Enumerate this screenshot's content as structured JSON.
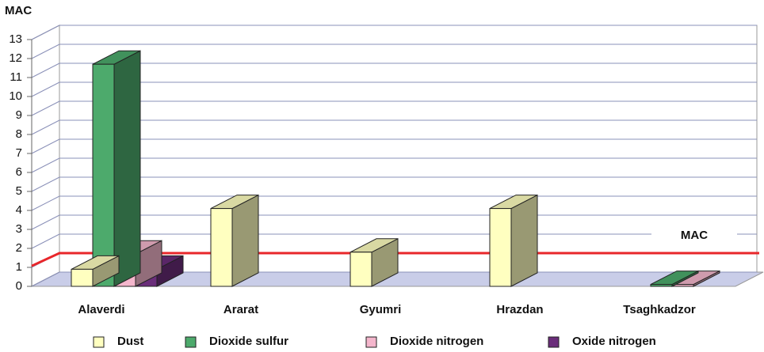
{
  "chart_data": {
    "type": "bar3d",
    "y_label": "MAC",
    "categories": [
      "Alaverdi",
      "Ararat",
      "Gyumri",
      "Hrazdan",
      "Tsaghkadzor"
    ],
    "series": [
      {
        "name": "Dust",
        "color": "#ffffc0",
        "values": [
          0.9,
          4.1,
          1.8,
          4.1,
          null
        ]
      },
      {
        "name": "Dioxide sulfur",
        "color": "#4daa6c",
        "values": [
          11.7,
          null,
          null,
          null,
          0.1
        ]
      },
      {
        "name": "Dioxide nitrogen",
        "color": "#f4b6cc",
        "values": [
          1.7,
          null,
          null,
          null,
          0.1
        ]
      },
      {
        "name": "Oxide nitrogen",
        "color": "#6a2d7a",
        "values": [
          0.9,
          null,
          null,
          null,
          null
        ]
      }
    ],
    "mac_line": 1,
    "mac_line_color": "#e8262a",
    "annotation": "MAC",
    "ylim": [
      0,
      13
    ],
    "yticks": [
      0,
      1,
      2,
      3,
      4,
      5,
      6,
      7,
      8,
      9,
      10,
      11,
      12,
      13
    ],
    "grid": true
  }
}
